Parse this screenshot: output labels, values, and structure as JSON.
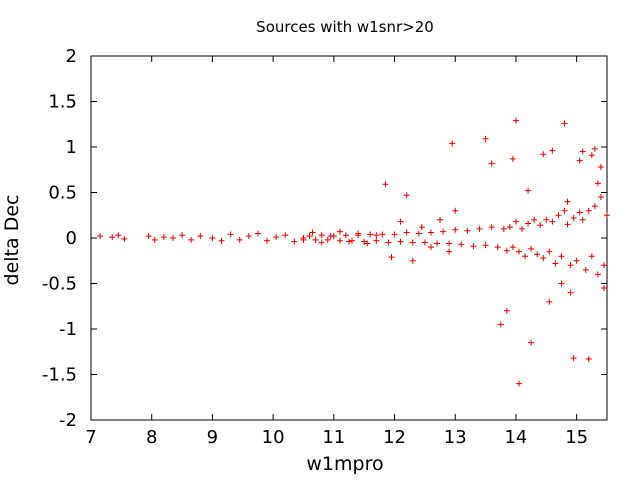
{
  "chart_data": {
    "type": "scatter",
    "title": "Sources with w1snr>20",
    "xlabel": "w1mpro",
    "ylabel": "delta Dec",
    "xlim": [
      7,
      15.5
    ],
    "ylim": [
      -2,
      2
    ],
    "x_ticks": [
      7,
      8,
      9,
      10,
      11,
      12,
      13,
      14,
      15
    ],
    "x_tick_labels": [
      "7",
      "8",
      "9",
      "10",
      "11",
      "12",
      "13",
      "14",
      "15"
    ],
    "y_ticks": [
      2,
      1.5,
      1,
      0.5,
      0,
      -0.5,
      -1,
      -1.5,
      -2
    ],
    "y_tick_labels": [
      "2",
      "1.5",
      "1",
      "0.5",
      "0",
      "-0.5",
      "-1",
      "-1.5",
      "-2"
    ],
    "marker": "+",
    "marker_color": "#e00000",
    "grid": false,
    "series": [
      {
        "x": [
          7.15,
          7.35,
          7.45,
          7.55,
          7.95,
          8.05,
          8.2,
          8.35,
          8.5,
          8.65,
          8.8,
          9.0,
          9.15,
          9.3,
          9.45,
          9.6,
          9.75,
          9.9,
          10.05,
          10.2,
          10.35,
          10.5,
          10.65,
          10.8,
          10.95,
          11.1,
          11.25,
          11.4,
          11.55,
          11.7,
          11.85,
          11.95,
          12.1,
          12.2,
          12.3,
          12.45,
          12.6,
          12.75,
          12.9,
          12.95,
          13.0,
          13.5,
          13.6,
          13.75,
          13.85,
          13.95,
          14.0,
          14.05,
          14.2,
          14.25,
          14.45,
          14.55,
          14.6,
          14.75,
          14.8,
          14.85,
          14.9,
          14.95,
          15.05,
          15.1,
          15.2,
          15.25,
          15.3,
          15.35,
          15.4,
          15.45,
          15.5,
          15.45,
          15.4,
          15.35,
          15.3,
          15.25,
          15.2,
          15.15,
          15.1,
          15.05,
          15.0,
          14.95,
          14.9,
          14.85,
          14.8,
          14.75,
          14.7,
          14.65,
          14.6,
          14.55,
          14.5,
          14.45,
          14.4,
          14.35,
          14.3,
          14.25,
          14.2,
          14.15,
          14.1,
          14.05,
          14.0,
          13.95,
          13.9,
          13.85,
          13.8,
          13.7,
          13.6,
          13.5,
          13.4,
          13.3,
          13.2,
          13.1,
          13.0,
          12.9,
          12.8,
          12.7,
          12.6,
          12.5,
          12.4,
          12.3,
          12.2,
          12.1,
          12.0,
          11.9,
          11.8,
          11.7,
          11.6,
          11.5,
          11.4,
          11.3,
          11.2,
          11.1,
          11.0,
          10.9,
          10.8,
          10.7,
          10.6,
          10.5
        ],
        "y": [
          0.02,
          0.01,
          0.03,
          -0.01,
          0.02,
          -0.02,
          0.01,
          0.0,
          0.03,
          -0.02,
          0.02,
          0.0,
          -0.03,
          0.04,
          -0.02,
          0.02,
          0.05,
          -0.03,
          0.01,
          0.03,
          -0.04,
          0.0,
          0.06,
          -0.05,
          0.02,
          0.07,
          -0.04,
          0.05,
          -0.06,
          0.03,
          0.59,
          -0.21,
          0.18,
          0.47,
          -0.25,
          0.12,
          -0.1,
          0.2,
          -0.15,
          1.04,
          0.3,
          1.09,
          0.82,
          -0.95,
          -0.8,
          0.87,
          1.29,
          -1.6,
          0.52,
          -1.15,
          0.92,
          -0.7,
          0.96,
          -0.5,
          1.26,
          0.4,
          -0.6,
          -1.32,
          0.85,
          0.95,
          -1.33,
          0.91,
          0.98,
          0.6,
          0.78,
          -0.55,
          0.25,
          -0.3,
          0.45,
          -0.4,
          0.35,
          -0.2,
          0.3,
          -0.35,
          0.2,
          0.28,
          -0.25,
          0.22,
          -0.3,
          0.15,
          0.3,
          -0.2,
          0.25,
          -0.28,
          0.18,
          -0.15,
          0.2,
          -0.22,
          0.14,
          -0.18,
          0.2,
          -0.12,
          0.16,
          -0.2,
          0.1,
          -0.15,
          0.18,
          -0.1,
          0.12,
          -0.14,
          0.1,
          -0.1,
          0.12,
          -0.08,
          0.1,
          -0.09,
          0.08,
          -0.07,
          0.09,
          -0.06,
          0.07,
          -0.06,
          0.06,
          -0.05,
          0.05,
          -0.05,
          0.06,
          -0.04,
          0.04,
          -0.05,
          0.04,
          -0.03,
          0.04,
          -0.04,
          0.03,
          -0.03,
          0.03,
          -0.03,
          0.02,
          -0.02,
          0.03,
          -0.02,
          0.02,
          -0.02
        ]
      }
    ]
  }
}
